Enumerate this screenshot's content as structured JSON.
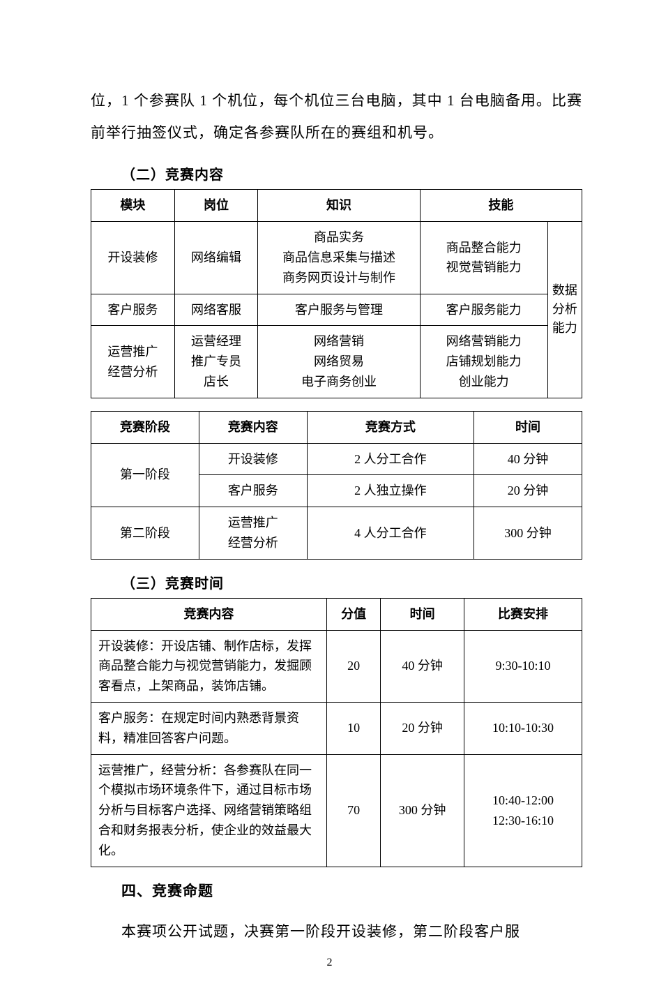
{
  "intro_paragraph": "位，1 个参赛队 1 个机位，每个机位三台电脑，其中 1 台电脑备用。比赛前举行抽签仪式，确定各参赛队所在的赛组和机号。",
  "section2_heading": "（二）竞赛内容",
  "table1": {
    "headers": [
      "模块",
      "岗位",
      "知识",
      "技能"
    ],
    "merged_right": "数据\n分析\n能力",
    "rows": [
      {
        "module": "开设装修",
        "post": "网络编辑",
        "knowledge": "商品实务\n商品信息采集与描述\n商务网页设计与制作",
        "skill": "商品整合能力\n视觉营销能力"
      },
      {
        "module": "客户服务",
        "post": "网络客服",
        "knowledge": "客户服务与管理",
        "skill": "客户服务能力"
      },
      {
        "module": "运营推广\n经营分析",
        "post": "运营经理\n推广专员\n店长",
        "knowledge": "网络营销\n网络贸易\n电子商务创业",
        "skill": "网络营销能力\n店铺规划能力\n创业能力"
      }
    ]
  },
  "table2": {
    "headers": [
      "竞赛阶段",
      "竞赛内容",
      "竞赛方式",
      "时间"
    ],
    "rows": [
      {
        "stage": "第一阶段",
        "content": "开设装修",
        "mode": "2 人分工合作",
        "time": "40 分钟"
      },
      {
        "stage": "",
        "content": "客户服务",
        "mode": "2 人独立操作",
        "time": "20 分钟"
      },
      {
        "stage": "第二阶段",
        "content": "运营推广\n经营分析",
        "mode": "4 人分工合作",
        "time": "300 分钟"
      }
    ]
  },
  "section3_heading": "（三）竞赛时间",
  "table3": {
    "headers": [
      "竞赛内容",
      "分值",
      "时间",
      "比赛安排"
    ],
    "rows": [
      {
        "content": "开设装修：开设店铺、制作店标，发挥商品整合能力与视觉营销能力，发掘顾客看点，上架商品，装饰店铺。",
        "score": "20",
        "time": "40 分钟",
        "schedule": "9:30-10:10"
      },
      {
        "content": "客户服务：在规定时间内熟悉背景资料，精准回答客户问题。",
        "score": "10",
        "time": "20 分钟",
        "schedule": "10:10-10:30"
      },
      {
        "content": "运营推广，经营分析：各参赛队在同一个模拟市场环境条件下，通过目标市场分析与目标客户选择、网络营销策略组合和财务报表分析，使企业的效益最大化。",
        "score": "70",
        "time": "300 分钟",
        "schedule": "10:40-12:00\n12:30-16:10"
      }
    ]
  },
  "section4_heading": "四、竞赛命题",
  "closing_paragraph": "本赛项公开试题，决赛第一阶段开设装修，第二阶段客户服",
  "page_number": "2",
  "column_widths": {
    "t1": [
      "17%",
      "17%",
      "33%",
      "26%",
      "7%"
    ],
    "t2": [
      "22%",
      "22%",
      "34%",
      "22%"
    ],
    "t3": [
      "48%",
      "11%",
      "17%",
      "24%"
    ]
  }
}
